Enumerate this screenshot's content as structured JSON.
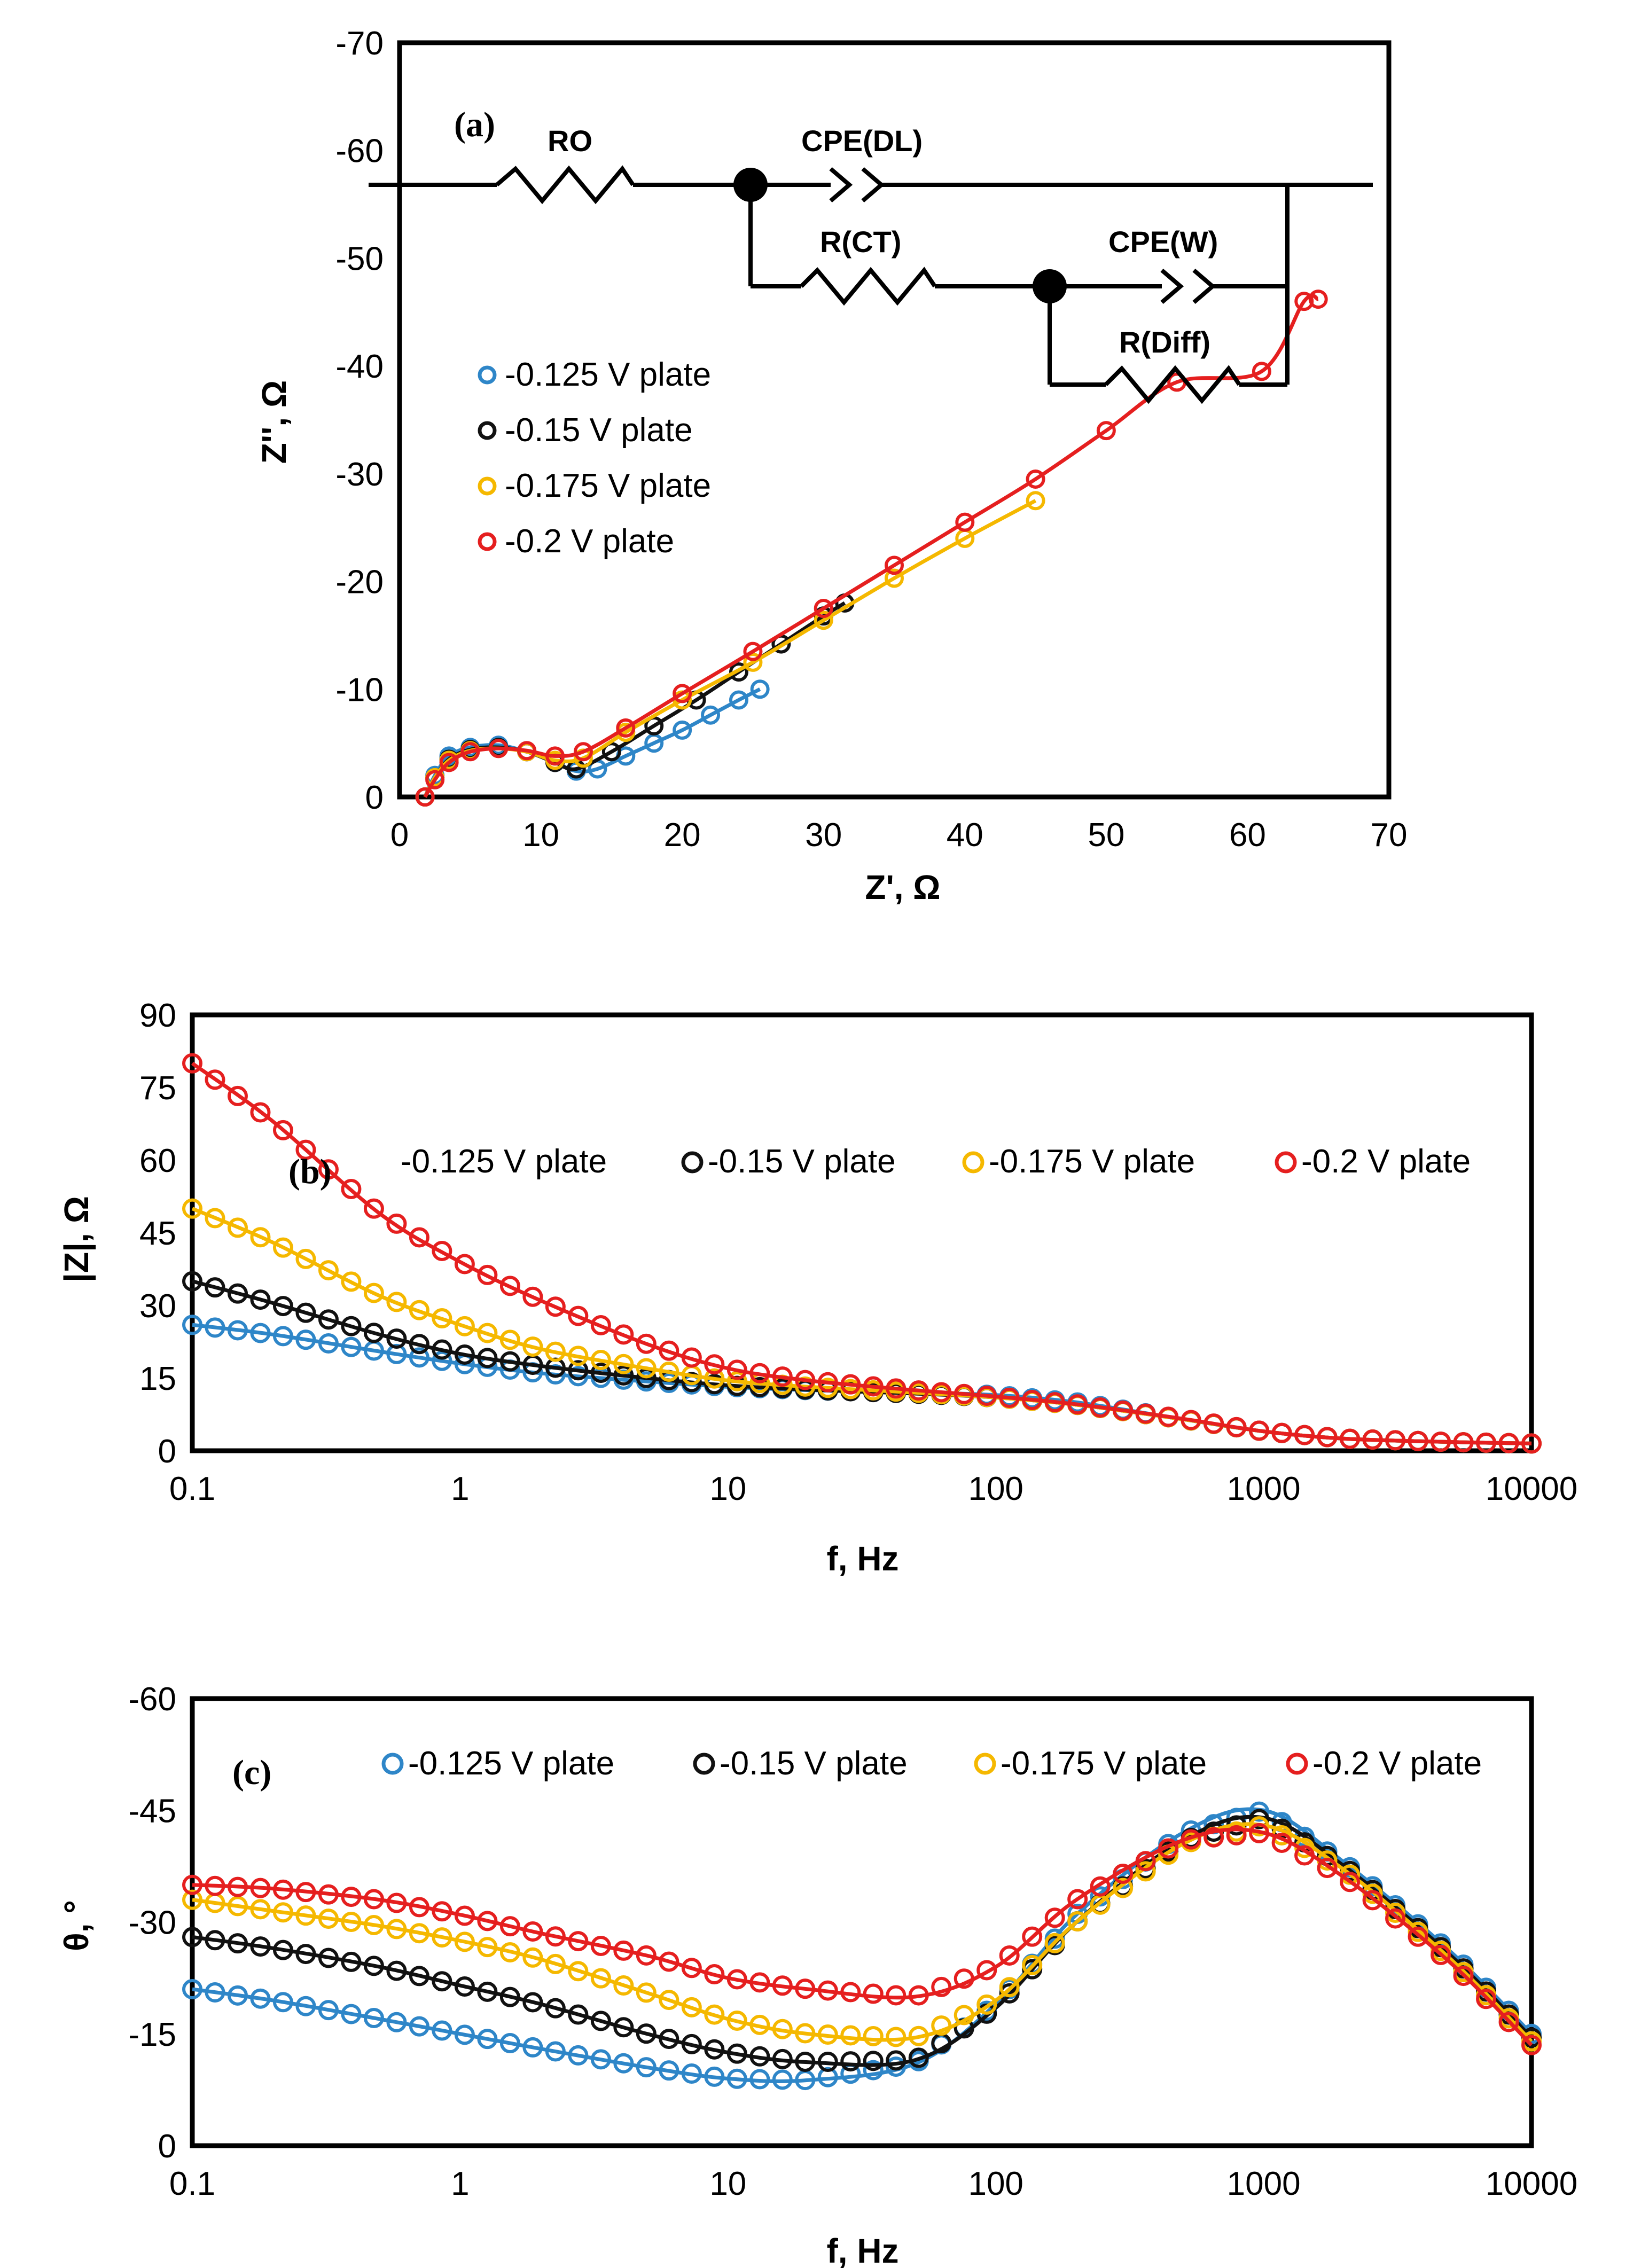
{
  "series_names": [
    "-0.125 V plate",
    "-0.15 V plate",
    "-0.175 V plate",
    "-0.2 V plate"
  ],
  "series_colors": [
    "#2E86C8",
    "#111111",
    "#F5B800",
    "#E51F1F"
  ],
  "circuit": {
    "labels": [
      "RO",
      "CPE(DL)",
      "R(CT)",
      "CPE(W)",
      "R(Diff)"
    ]
  },
  "chart_data": [
    {
      "type": "scatter",
      "panel": "(a)",
      "title": "",
      "xlabel": "Z', Ω",
      "ylabel": "Z'', Ω",
      "xlim": [
        0,
        70
      ],
      "ylim": [
        0,
        -70
      ],
      "xticks": [
        "0",
        "10",
        "20",
        "30",
        "40",
        "50",
        "60",
        "70"
      ],
      "yticks": [
        "0",
        "-10",
        "-20",
        "-30",
        "-40",
        "-50",
        "-60",
        "-70"
      ],
      "legend_position": "left",
      "series": [
        {
          "name": "-0.125 V plate",
          "x": [
            1.8,
            2.5,
            3.5,
            5,
            7,
            9,
            11,
            12.5,
            14,
            16,
            18,
            20,
            22,
            24,
            25.5
          ],
          "y": [
            0,
            -2,
            -3.8,
            -4.6,
            -4.8,
            -4.2,
            -3.2,
            -2.4,
            -2.6,
            -3.8,
            -5,
            -6.2,
            -7.6,
            -9,
            -10
          ]
        },
        {
          "name": "-0.15 V plate",
          "x": [
            1.8,
            2.5,
            3.5,
            5,
            7,
            9,
            11,
            12.5,
            15,
            18,
            21,
            24,
            27,
            30,
            31.5
          ],
          "y": [
            0,
            -1.8,
            -3.5,
            -4.4,
            -4.6,
            -4.2,
            -3.2,
            -2.6,
            -4.2,
            -6.6,
            -9,
            -11.6,
            -14.2,
            -16.8,
            -18
          ]
        },
        {
          "name": "-0.175 V plate",
          "x": [
            1.8,
            2.5,
            3.5,
            5,
            7,
            9,
            11,
            13,
            16,
            20,
            25,
            30,
            35,
            40,
            45
          ],
          "y": [
            0,
            -1.8,
            -3.4,
            -4.3,
            -4.5,
            -4.2,
            -3.4,
            -3.6,
            -6,
            -9,
            -12.5,
            -16.4,
            -20.3,
            -24,
            -27.5
          ]
        },
        {
          "name": "-0.2 V plate",
          "x": [
            1.8,
            2.5,
            3.5,
            5,
            7,
            9,
            11,
            13,
            16,
            20,
            25,
            30,
            35,
            40,
            45,
            50,
            55,
            61,
            64,
            65
          ],
          "y": [
            0,
            -1.6,
            -3.2,
            -4.2,
            -4.5,
            -4.3,
            -3.8,
            -4.2,
            -6.4,
            -9.6,
            -13.5,
            -17.5,
            -21.5,
            -25.5,
            -29.5,
            -34,
            -38.5,
            -39.5,
            -46,
            -46.2
          ]
        }
      ]
    },
    {
      "type": "line",
      "panel": "(b)",
      "title": "",
      "xlabel": "f, Hz",
      "ylabel": "|Z|, Ω",
      "xscale": "log",
      "xlim": [
        0.1,
        10000
      ],
      "ylim": [
        0,
        90
      ],
      "xticks": [
        "0.1",
        "1",
        "10",
        "100",
        "1000",
        "10000"
      ],
      "yticks": [
        "0",
        "15",
        "30",
        "45",
        "60",
        "75",
        "90"
      ],
      "legend_position": "top",
      "x": [
        0.1,
        0.2,
        0.5,
        1,
        2,
        5,
        10,
        20,
        50,
        100,
        200,
        500,
        1000,
        2000,
        5000,
        10000
      ],
      "series": [
        {
          "name": "-0.125 V plate",
          "values": [
            26,
            24,
            20.5,
            18,
            16,
            14.3,
            13.2,
            12.5,
            12,
            11.5,
            10,
            6.5,
            4,
            2.5,
            1.8,
            1.5
          ]
        },
        {
          "name": "-0.15 V plate",
          "values": [
            35,
            30.5,
            24,
            20,
            17.5,
            15,
            13.5,
            12.6,
            11.8,
            11,
            9.5,
            6.5,
            4,
            2.5,
            1.8,
            1.5
          ]
        },
        {
          "name": "-0.175 V plate",
          "values": [
            50,
            43,
            32,
            26,
            21,
            17,
            14.5,
            13.2,
            12,
            11,
            9.5,
            6.5,
            4,
            2.5,
            1.8,
            1.5
          ]
        },
        {
          "name": "-0.2 V plate",
          "values": [
            80,
            68,
            49,
            39,
            31,
            22,
            17,
            14.5,
            12.5,
            11.2,
            9.6,
            6.6,
            4,
            2.5,
            1.8,
            1.5
          ]
        }
      ]
    },
    {
      "type": "line",
      "panel": "(c)",
      "title": "",
      "xlabel": "f, Hz",
      "ylabel": "θ, °",
      "xscale": "log",
      "xlim": [
        0.1,
        10000
      ],
      "ylim": [
        0,
        -60
      ],
      "xticks": [
        "0.1",
        "1",
        "10",
        "100",
        "1000",
        "10000"
      ],
      "yticks": [
        "0",
        "-15",
        "-30",
        "-45",
        "-60"
      ],
      "legend_position": "top",
      "x": [
        0.1,
        0.2,
        0.5,
        1,
        2,
        5,
        10,
        20,
        50,
        100,
        200,
        500,
        1000,
        2000,
        5000,
        10000
      ],
      "series": [
        {
          "name": "-0.125 V plate",
          "values": [
            -21,
            -19.5,
            -17,
            -15,
            -13,
            -10.5,
            -9,
            -8.8,
            -11,
            -19,
            -31,
            -42,
            -45,
            -38,
            -26,
            -15
          ]
        },
        {
          "name": "-0.15 V plate",
          "values": [
            -28,
            -26.5,
            -24,
            -21.5,
            -19,
            -15,
            -12.5,
            -11.2,
            -11.5,
            -18.5,
            -30,
            -41,
            -44,
            -37.5,
            -25.5,
            -14.5
          ]
        },
        {
          "name": "-0.175 V plate",
          "values": [
            -33,
            -31.5,
            -29.5,
            -27.5,
            -25,
            -20.5,
            -17,
            -15,
            -14.5,
            -19.5,
            -30,
            -40.5,
            -43,
            -37,
            -25,
            -14
          ]
        },
        {
          "name": "-0.2 V plate",
          "values": [
            -35,
            -34.5,
            -33,
            -31,
            -28.5,
            -25.5,
            -22.5,
            -21,
            -20,
            -24,
            -33,
            -41,
            -42,
            -36,
            -24.5,
            -13.5
          ]
        }
      ]
    }
  ]
}
